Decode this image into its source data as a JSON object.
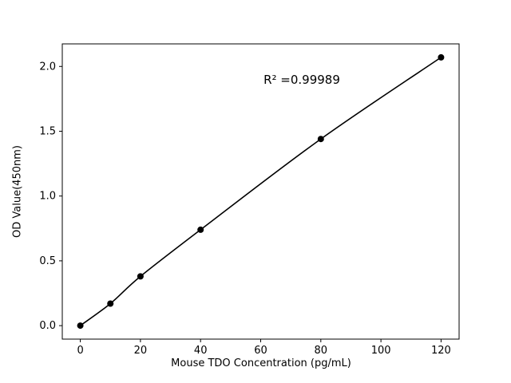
{
  "chart_data": {
    "type": "line",
    "x": [
      0,
      10,
      20,
      40,
      80,
      120
    ],
    "y": [
      0.0,
      0.17,
      0.38,
      0.74,
      1.44,
      2.07
    ],
    "title": "",
    "xlabel": "Mouse TDO Concentration (pg/mL)",
    "ylabel": "OD Value(450nm)",
    "annotation": "R² =0.99989",
    "xlim": [
      -6,
      126
    ],
    "ylim": [
      -0.104,
      2.174
    ],
    "xticks": [
      0,
      20,
      40,
      60,
      80,
      100,
      120
    ],
    "xtick_labels": [
      "0",
      "20",
      "40",
      "60",
      "80",
      "100",
      "120"
    ],
    "yticks": [
      0.0,
      0.5,
      1.0,
      1.5,
      2.0
    ],
    "ytick_labels": [
      "0.0",
      "0.5",
      "1.0",
      "1.5",
      "2.0"
    ],
    "line_color": "#000000",
    "marker_color": "#000000",
    "marker_radius": 4,
    "grid": false
  }
}
